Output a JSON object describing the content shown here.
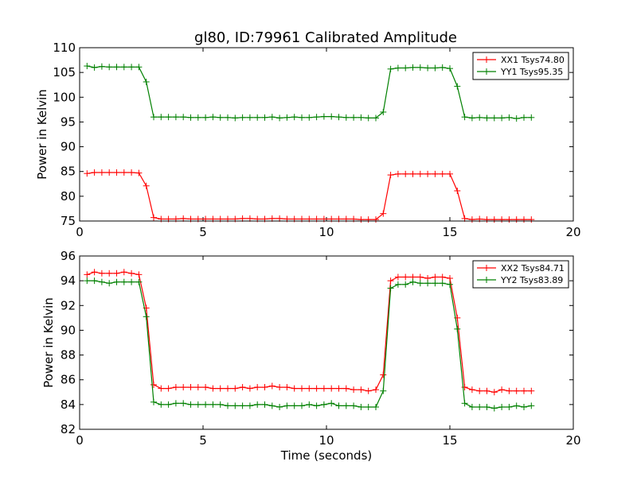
{
  "chart_data": {
    "title": "gl80, ID:79961 Calibrated Amplitude",
    "xlabel": "Time (seconds)",
    "xlim": [
      0,
      20
    ],
    "xticks": [
      0,
      5,
      10,
      15,
      20
    ],
    "x": [
      0.3,
      0.6,
      0.9,
      1.2,
      1.5,
      1.8,
      2.1,
      2.4,
      2.7,
      3.0,
      3.3,
      3.6,
      3.9,
      4.2,
      4.5,
      4.8,
      5.1,
      5.4,
      5.7,
      6.0,
      6.3,
      6.6,
      6.9,
      7.2,
      7.5,
      7.8,
      8.1,
      8.4,
      8.7,
      9.0,
      9.3,
      9.6,
      9.9,
      10.2,
      10.5,
      10.8,
      11.1,
      11.4,
      11.7,
      12.0,
      12.3,
      12.6,
      12.9,
      13.2,
      13.5,
      13.8,
      14.1,
      14.4,
      14.7,
      15.0,
      15.3,
      15.6,
      15.9,
      16.2,
      16.5,
      16.8,
      17.1,
      17.4,
      17.7,
      18.0,
      18.3
    ],
    "panels": [
      {
        "type": "line",
        "ylabel": "Power in Kelvin",
        "ylim": [
          75,
          110
        ],
        "yticks": [
          75,
          80,
          85,
          90,
          95,
          100,
          105,
          110
        ],
        "legend_position": "top-right",
        "series": [
          {
            "name": "XX1 Tsys74.80",
            "color": "#ff0000",
            "values": [
              84.6,
              84.8,
              84.8,
              84.8,
              84.8,
              84.8,
              84.8,
              84.7,
              82.1,
              75.7,
              75.4,
              75.4,
              75.4,
              75.5,
              75.4,
              75.4,
              75.4,
              75.4,
              75.4,
              75.4,
              75.4,
              75.5,
              75.5,
              75.4,
              75.4,
              75.5,
              75.5,
              75.4,
              75.4,
              75.4,
              75.4,
              75.4,
              75.4,
              75.4,
              75.4,
              75.4,
              75.4,
              75.3,
              75.3,
              75.3,
              76.5,
              84.3,
              84.5,
              84.5,
              84.5,
              84.5,
              84.5,
              84.5,
              84.5,
              84.5,
              81.1,
              75.5,
              75.3,
              75.4,
              75.3,
              75.3,
              75.3,
              75.3,
              75.3,
              75.3,
              75.3
            ]
          },
          {
            "name": "YY1 Tsys95.35",
            "color": "#008000",
            "values": [
              106.3,
              106.0,
              106.2,
              106.1,
              106.1,
              106.1,
              106.1,
              106.1,
              103.1,
              96.0,
              96.0,
              96.0,
              96.0,
              96.0,
              95.9,
              95.9,
              95.9,
              96.0,
              95.9,
              95.9,
              95.8,
              95.9,
              95.9,
              95.9,
              95.9,
              96.0,
              95.8,
              95.9,
              96.0,
              95.9,
              95.9,
              96.0,
              96.1,
              96.1,
              96.0,
              95.9,
              95.9,
              95.9,
              95.8,
              95.8,
              97.0,
              105.7,
              105.9,
              105.9,
              106.0,
              106.0,
              105.9,
              105.9,
              106.0,
              105.8,
              102.2,
              96.0,
              95.8,
              95.9,
              95.8,
              95.8,
              95.8,
              95.9,
              95.7,
              95.9,
              95.9
            ]
          }
        ]
      },
      {
        "type": "line",
        "ylabel": "Power in Kelvin",
        "ylim": [
          82,
          96
        ],
        "yticks": [
          82,
          84,
          86,
          88,
          90,
          92,
          94,
          96
        ],
        "legend_position": "top-right",
        "series": [
          {
            "name": "XX2 Tsys84.71",
            "color": "#ff0000",
            "values": [
              94.5,
              94.7,
              94.6,
              94.6,
              94.6,
              94.7,
              94.6,
              94.5,
              91.8,
              85.6,
              85.3,
              85.3,
              85.4,
              85.4,
              85.4,
              85.4,
              85.4,
              85.3,
              85.3,
              85.3,
              85.3,
              85.4,
              85.3,
              85.4,
              85.4,
              85.5,
              85.4,
              85.4,
              85.3,
              85.3,
              85.3,
              85.3,
              85.3,
              85.3,
              85.3,
              85.3,
              85.2,
              85.2,
              85.1,
              85.2,
              86.4,
              94.0,
              94.3,
              94.3,
              94.3,
              94.3,
              94.2,
              94.3,
              94.3,
              94.2,
              91.0,
              85.4,
              85.2,
              85.1,
              85.1,
              85.0,
              85.2,
              85.1,
              85.1,
              85.1,
              85.1
            ]
          },
          {
            "name": "YY2 Tsys83.89",
            "color": "#008000",
            "values": [
              94.0,
              94.0,
              93.9,
              93.8,
              93.9,
              93.9,
              93.9,
              93.9,
              91.1,
              84.2,
              84.0,
              84.0,
              84.1,
              84.1,
              84.0,
              84.0,
              84.0,
              84.0,
              84.0,
              83.9,
              83.9,
              83.9,
              83.9,
              84.0,
              84.0,
              83.9,
              83.8,
              83.9,
              83.9,
              83.9,
              84.0,
              83.9,
              84.0,
              84.1,
              83.9,
              83.9,
              83.9,
              83.8,
              83.8,
              83.8,
              85.1,
              93.4,
              93.7,
              93.7,
              93.9,
              93.8,
              93.8,
              93.8,
              93.8,
              93.7,
              90.1,
              84.1,
              83.8,
              83.8,
              83.8,
              83.7,
              83.8,
              83.8,
              83.9,
              83.8,
              83.9
            ]
          }
        ]
      }
    ]
  }
}
